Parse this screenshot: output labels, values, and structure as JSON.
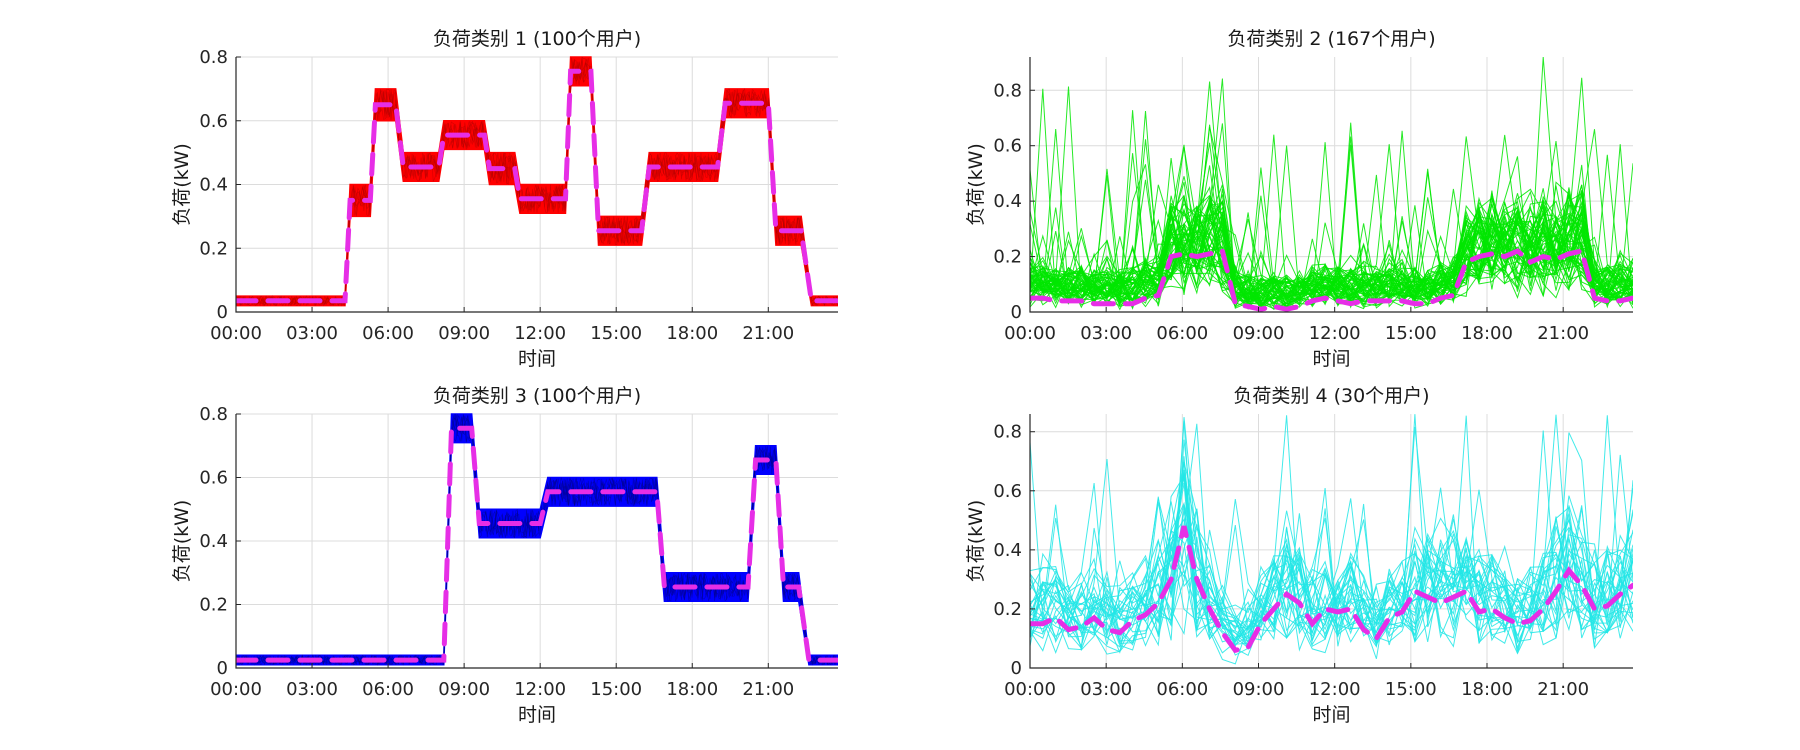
{
  "chart_data": [
    {
      "type": "line",
      "title": "负荷类别 1 (100个用户)",
      "xlabel": "时间",
      "ylabel": "负荷(kW)",
      "x_unit": "hour",
      "xlim": [
        0,
        23.75
      ],
      "ylim": [
        0,
        0.8
      ],
      "xticks": [
        "00:00",
        "03:00",
        "06:00",
        "09:00",
        "12:00",
        "15:00",
        "18:00",
        "21:00"
      ],
      "yticks": [
        "0",
        "0.2",
        "0.4",
        "0.6",
        "0.8"
      ],
      "grid": true,
      "users": 100,
      "band_color": "#ff0000",
      "mean_color": "#e62ee6",
      "x": [
        0,
        4.3,
        4.5,
        5.3,
        5.5,
        6.3,
        6.6,
        8.0,
        8.2,
        9.8,
        10.0,
        11.0,
        11.2,
        13.0,
        13.2,
        14.0,
        14.3,
        16.0,
        16.3,
        19.0,
        19.3,
        21.0,
        21.3,
        22.3,
        22.7,
        23.75
      ],
      "band_low": [
        0.02,
        0.02,
        0.3,
        0.3,
        0.6,
        0.6,
        0.41,
        0.41,
        0.51,
        0.51,
        0.4,
        0.4,
        0.31,
        0.31,
        0.71,
        0.71,
        0.21,
        0.21,
        0.41,
        0.41,
        0.61,
        0.61,
        0.21,
        0.21,
        0.02,
        0.02
      ],
      "band_high": [
        0.05,
        0.05,
        0.4,
        0.4,
        0.7,
        0.7,
        0.5,
        0.5,
        0.6,
        0.6,
        0.5,
        0.5,
        0.4,
        0.4,
        0.8,
        0.8,
        0.3,
        0.3,
        0.5,
        0.5,
        0.7,
        0.7,
        0.3,
        0.3,
        0.05,
        0.05
      ],
      "mean": [
        0.035,
        0.035,
        0.35,
        0.35,
        0.65,
        0.65,
        0.455,
        0.455,
        0.555,
        0.555,
        0.45,
        0.45,
        0.355,
        0.355,
        0.755,
        0.755,
        0.255,
        0.255,
        0.455,
        0.455,
        0.655,
        0.655,
        0.255,
        0.255,
        0.035,
        0.035
      ]
    },
    {
      "type": "line",
      "title": "负荷类别 2 (167个用户)",
      "xlabel": "时间",
      "ylabel": "负荷(kW)",
      "x_unit": "hour",
      "xlim": [
        0,
        23.75
      ],
      "ylim": [
        0,
        0.92
      ],
      "xticks": [
        "00:00",
        "03:00",
        "06:00",
        "09:00",
        "12:00",
        "15:00",
        "18:00",
        "21:00"
      ],
      "yticks": [
        "0",
        "0.2",
        "0.4",
        "0.6",
        "0.8"
      ],
      "grid": true,
      "users": 167,
      "band_color": "#00e600",
      "mean_color": "#e62ee6",
      "spread": 0.45,
      "mean": [
        0.05,
        0.05,
        0.04,
        0.04,
        0.04,
        0.03,
        0.03,
        0.03,
        0.03,
        0.05,
        0.06,
        0.2,
        0.21,
        0.2,
        0.21,
        0.22,
        0.03,
        0.02,
        0.01,
        0.02,
        0.01,
        0.02,
        0.04,
        0.05,
        0.04,
        0.03,
        0.04,
        0.04,
        0.04,
        0.04,
        0.03,
        0.03,
        0.05,
        0.06,
        0.18,
        0.2,
        0.21,
        0.2,
        0.22,
        0.18,
        0.2,
        0.19,
        0.21,
        0.22,
        0.05,
        0.04,
        0.04,
        0.05
      ]
    },
    {
      "type": "line",
      "title": "负荷类别 3 (100个用户)",
      "xlabel": "时间",
      "ylabel": "负荷(kW)",
      "x_unit": "hour",
      "xlim": [
        0,
        23.75
      ],
      "ylim": [
        0,
        0.8
      ],
      "xticks": [
        "00:00",
        "03:00",
        "06:00",
        "09:00",
        "12:00",
        "15:00",
        "18:00",
        "21:00"
      ],
      "yticks": [
        "0",
        "0.2",
        "0.4",
        "0.6",
        "0.8"
      ],
      "grid": true,
      "users": 100,
      "band_color": "#0000ff",
      "mean_color": "#e62ee6",
      "x": [
        0,
        8.2,
        8.5,
        9.3,
        9.6,
        12.0,
        12.3,
        16.6,
        16.9,
        20.2,
        20.5,
        21.3,
        21.6,
        22.2,
        22.6,
        23.75
      ],
      "band_low": [
        0.01,
        0.01,
        0.71,
        0.71,
        0.41,
        0.41,
        0.51,
        0.51,
        0.21,
        0.21,
        0.61,
        0.61,
        0.21,
        0.21,
        0.01,
        0.01
      ],
      "band_high": [
        0.04,
        0.04,
        0.8,
        0.8,
        0.5,
        0.5,
        0.6,
        0.6,
        0.3,
        0.3,
        0.7,
        0.7,
        0.3,
        0.3,
        0.04,
        0.04
      ],
      "mean": [
        0.025,
        0.025,
        0.755,
        0.755,
        0.455,
        0.455,
        0.555,
        0.555,
        0.255,
        0.255,
        0.655,
        0.655,
        0.255,
        0.255,
        0.025,
        0.025
      ]
    },
    {
      "type": "line",
      "title": "负荷类别 4 (30个用户)",
      "xlabel": "时间",
      "ylabel": "负荷(kW)",
      "x_unit": "hour",
      "xlim": [
        0,
        23.75
      ],
      "ylim": [
        0,
        0.86
      ],
      "xticks": [
        "00:00",
        "03:00",
        "06:00",
        "09:00",
        "12:00",
        "15:00",
        "18:00",
        "21:00"
      ],
      "yticks": [
        "0",
        "0.2",
        "0.4",
        "0.6",
        "0.8"
      ],
      "grid": true,
      "users": 30,
      "band_color": "#22e6e6",
      "mean_color": "#e62ee6",
      "spread": 0.4,
      "mean": [
        0.15,
        0.15,
        0.17,
        0.13,
        0.14,
        0.17,
        0.13,
        0.12,
        0.16,
        0.18,
        0.22,
        0.3,
        0.48,
        0.3,
        0.2,
        0.12,
        0.06,
        0.07,
        0.15,
        0.2,
        0.25,
        0.22,
        0.15,
        0.2,
        0.19,
        0.2,
        0.13,
        0.1,
        0.17,
        0.19,
        0.26,
        0.24,
        0.22,
        0.24,
        0.26,
        0.19,
        0.2,
        0.17,
        0.15,
        0.16,
        0.2,
        0.26,
        0.33,
        0.28,
        0.2,
        0.21,
        0.25,
        0.28
      ]
    }
  ]
}
